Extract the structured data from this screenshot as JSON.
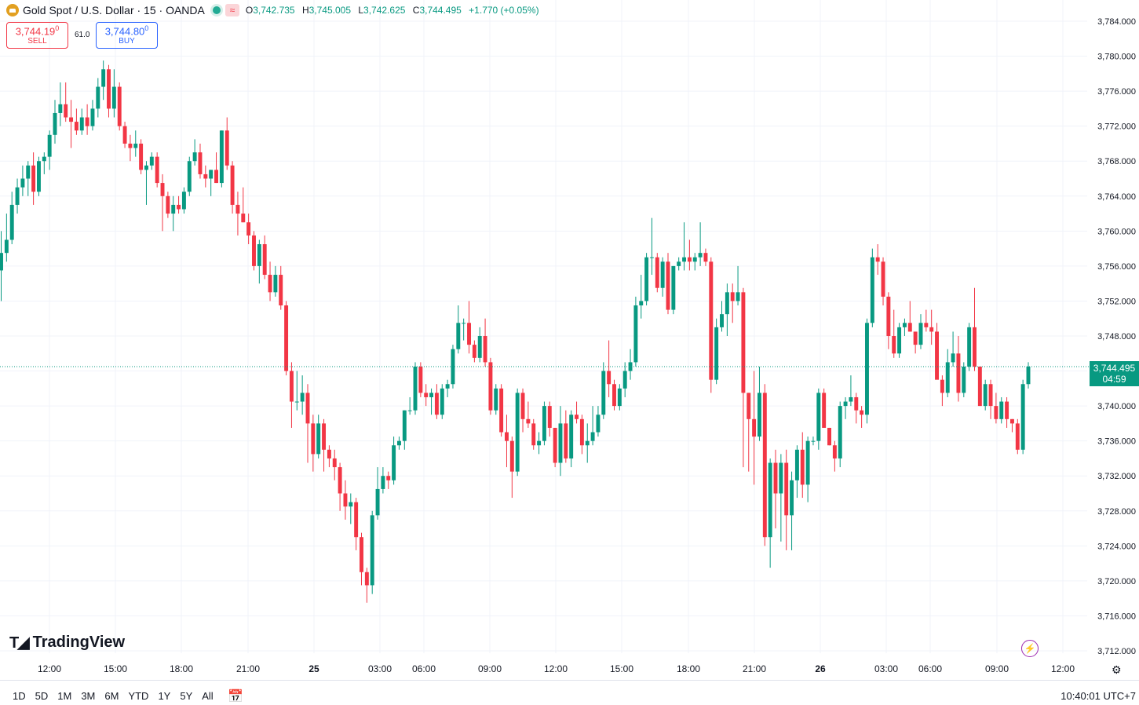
{
  "header": {
    "symbol": "Gold Spot / U.S. Dollar · 15 · OANDA",
    "open_label": "O",
    "open": "3,742.735",
    "high_label": "H",
    "high": "3,745.005",
    "low_label": "L",
    "low": "3,742.625",
    "close_label": "C",
    "close": "3,744.495",
    "change": "+1.770 (+0.05%)"
  },
  "trade": {
    "sell_price": "3,744.19",
    "sell_sup": "0",
    "sell_label": "SELL",
    "spread": "61.0",
    "buy_price": "3,744.80",
    "buy_sup": "0",
    "buy_label": "BUY"
  },
  "last_price": {
    "value": "3,744.495",
    "countdown": "04:59"
  },
  "branding": {
    "name": "TradingView"
  },
  "bottom": {
    "ranges": [
      "1D",
      "5D",
      "1M",
      "3M",
      "6M",
      "YTD",
      "1Y",
      "5Y",
      "All"
    ],
    "clock": "10:40:01 UTC+7"
  },
  "colors": {
    "up": "#089981",
    "down": "#f23645",
    "grid": "#f0f3fa"
  },
  "chart_data": {
    "type": "candlestick",
    "title": "Gold Spot / U.S. Dollar",
    "interval": "15",
    "ylim": [
      3710,
      3786
    ],
    "y_ticks": [
      "3,712.000",
      "3,716.000",
      "3,720.000",
      "3,724.000",
      "3,728.000",
      "3,732.000",
      "3,736.000",
      "3,740.000",
      "3,744.000",
      "3,748.000",
      "3,752.000",
      "3,756.000",
      "3,760.000",
      "3,764.000",
      "3,768.000",
      "3,772.000",
      "3,776.000",
      "3,780.000",
      "3,784.000"
    ],
    "x_ticks": [
      "12:00",
      "15:00",
      "18:00",
      "21:00",
      "25",
      "03:00",
      "06:00",
      "09:00",
      "12:00",
      "15:00",
      "18:00",
      "21:00",
      "26",
      "03:00",
      "06:00",
      "09:00",
      "12:00"
    ],
    "last_price": 3744.495,
    "candles": [
      [
        3755.5,
        3760.0,
        3752.0,
        3757.5
      ],
      [
        3757.5,
        3762.0,
        3756.5,
        3759.0
      ],
      [
        3759.0,
        3764.5,
        3758.5,
        3763.0
      ],
      [
        3763.0,
        3766.0,
        3762.0,
        3765.0
      ],
      [
        3765.0,
        3767.5,
        3764.0,
        3766.0
      ],
      [
        3766.0,
        3768.0,
        3764.0,
        3767.5
      ],
      [
        3767.5,
        3769.0,
        3763.0,
        3764.5
      ],
      [
        3764.5,
        3768.5,
        3764.0,
        3768.0
      ],
      [
        3768.0,
        3769.0,
        3766.5,
        3768.5
      ],
      [
        3768.5,
        3771.5,
        3767.0,
        3771.0
      ],
      [
        3771.0,
        3775.0,
        3770.0,
        3773.5
      ],
      [
        3773.5,
        3777.0,
        3772.0,
        3774.5
      ],
      [
        3774.5,
        3777.0,
        3772.5,
        3773.0
      ],
      [
        3773.0,
        3775.0,
        3769.5,
        3772.5
      ],
      [
        3772.5,
        3774.0,
        3771.0,
        3771.5
      ],
      [
        3771.5,
        3774.0,
        3771.0,
        3773.0
      ],
      [
        3773.0,
        3774.5,
        3771.0,
        3772.0
      ],
      [
        3772.0,
        3775.0,
        3771.5,
        3774.0
      ],
      [
        3774.0,
        3777.5,
        3773.0,
        3776.5
      ],
      [
        3776.5,
        3779.5,
        3775.0,
        3778.5
      ],
      [
        3778.5,
        3779.0,
        3773.0,
        3774.0
      ],
      [
        3774.0,
        3778.5,
        3773.0,
        3776.5
      ],
      [
        3776.5,
        3777.0,
        3771.5,
        3772.0
      ],
      [
        3772.0,
        3772.5,
        3769.5,
        3770.0
      ],
      [
        3770.0,
        3771.0,
        3768.0,
        3769.5
      ],
      [
        3769.5,
        3771.5,
        3768.5,
        3770.0
      ],
      [
        3770.0,
        3770.5,
        3766.5,
        3767.0
      ],
      [
        3767.0,
        3768.0,
        3763.0,
        3767.5
      ],
      [
        3767.5,
        3769.0,
        3767.0,
        3768.5
      ],
      [
        3768.5,
        3769.0,
        3765.0,
        3765.5
      ],
      [
        3765.5,
        3766.5,
        3760.0,
        3764.0
      ],
      [
        3764.0,
        3764.5,
        3761.5,
        3762.0
      ],
      [
        3762.0,
        3764.0,
        3760.0,
        3763.0
      ],
      [
        3763.0,
        3764.0,
        3762.0,
        3762.5
      ],
      [
        3762.5,
        3765.0,
        3762.0,
        3764.5
      ],
      [
        3764.5,
        3768.5,
        3764.0,
        3768.0
      ],
      [
        3768.0,
        3770.5,
        3767.5,
        3769.0
      ],
      [
        3769.0,
        3770.0,
        3766.0,
        3766.5
      ],
      [
        3766.5,
        3767.5,
        3765.0,
        3766.0
      ],
      [
        3766.0,
        3767.0,
        3764.0,
        3767.0
      ],
      [
        3767.0,
        3769.0,
        3765.5,
        3765.5
      ],
      [
        3765.5,
        3771.5,
        3765.0,
        3771.5
      ],
      [
        3771.5,
        3773.0,
        3767.0,
        3767.5
      ],
      [
        3767.5,
        3768.0,
        3762.0,
        3763.0
      ],
      [
        3763.0,
        3764.5,
        3759.5,
        3762.0
      ],
      [
        3762.0,
        3765.0,
        3761.0,
        3761.0
      ],
      [
        3761.0,
        3762.0,
        3758.5,
        3759.5
      ],
      [
        3759.5,
        3760.0,
        3755.5,
        3756.0
      ],
      [
        3756.0,
        3759.0,
        3754.0,
        3758.5
      ],
      [
        3758.5,
        3759.5,
        3754.5,
        3755.0
      ],
      [
        3755.0,
        3756.5,
        3752.0,
        3753.0
      ],
      [
        3753.0,
        3756.0,
        3752.5,
        3755.0
      ],
      [
        3755.0,
        3756.0,
        3751.0,
        3751.5
      ],
      [
        3751.5,
        3752.0,
        3743.5,
        3744.0
      ],
      [
        3744.0,
        3745.0,
        3737.5,
        3740.5
      ],
      [
        3740.5,
        3744.0,
        3739.5,
        3740.5
      ],
      [
        3740.5,
        3743.5,
        3739.0,
        3741.5
      ],
      [
        3741.5,
        3742.5,
        3733.5,
        3738.0
      ],
      [
        3738.0,
        3739.0,
        3732.5,
        3734.5
      ],
      [
        3734.5,
        3739.0,
        3734.0,
        3738.0
      ],
      [
        3738.0,
        3738.5,
        3732.5,
        3735.0
      ],
      [
        3735.0,
        3735.5,
        3733.0,
        3734.0
      ],
      [
        3734.0,
        3735.0,
        3731.5,
        3733.0
      ],
      [
        3733.0,
        3733.5,
        3728.0,
        3730.0
      ],
      [
        3730.0,
        3731.5,
        3727.0,
        3728.5
      ],
      [
        3728.5,
        3730.0,
        3726.5,
        3729.0
      ],
      [
        3729.0,
        3729.5,
        3723.5,
        3725.0
      ],
      [
        3725.0,
        3725.5,
        3719.5,
        3721.0
      ],
      [
        3721.0,
        3721.5,
        3717.5,
        3719.5
      ],
      [
        3719.5,
        3728.0,
        3718.5,
        3727.5
      ],
      [
        3727.5,
        3733.0,
        3727.0,
        3730.5
      ],
      [
        3730.5,
        3733.0,
        3730.0,
        3732.0
      ],
      [
        3732.0,
        3732.5,
        3730.5,
        3731.5
      ],
      [
        3731.5,
        3736.5,
        3731.0,
        3735.5
      ],
      [
        3735.5,
        3736.5,
        3735.0,
        3736.0
      ],
      [
        3736.0,
        3739.5,
        3735.0,
        3739.5
      ],
      [
        3739.5,
        3741.0,
        3739.0,
        3739.5
      ],
      [
        3739.5,
        3745.0,
        3739.0,
        3744.5
      ],
      [
        3744.5,
        3745.0,
        3741.0,
        3741.5
      ],
      [
        3741.5,
        3742.5,
        3740.0,
        3741.0
      ],
      [
        3741.0,
        3742.0,
        3739.0,
        3741.5
      ],
      [
        3741.5,
        3742.5,
        3738.5,
        3739.0
      ],
      [
        3739.0,
        3742.5,
        3738.5,
        3742.0
      ],
      [
        3742.0,
        3743.0,
        3741.0,
        3742.5
      ],
      [
        3742.5,
        3747.0,
        3742.0,
        3746.5
      ],
      [
        3746.5,
        3751.5,
        3746.0,
        3749.5
      ],
      [
        3749.5,
        3750.0,
        3747.5,
        3749.5
      ],
      [
        3749.5,
        3752.0,
        3746.0,
        3747.0
      ],
      [
        3747.0,
        3747.5,
        3745.0,
        3745.5
      ],
      [
        3745.5,
        3749.0,
        3745.0,
        3748.0
      ],
      [
        3748.0,
        3750.0,
        3744.5,
        3745.0
      ],
      [
        3745.0,
        3745.5,
        3739.0,
        3739.5
      ],
      [
        3739.5,
        3742.5,
        3739.0,
        3742.0
      ],
      [
        3742.0,
        3742.5,
        3736.5,
        3737.0
      ],
      [
        3737.0,
        3739.0,
        3733.0,
        3736.0
      ],
      [
        3736.0,
        3736.5,
        3729.5,
        3732.5
      ],
      [
        3732.5,
        3742.0,
        3732.0,
        3741.5
      ],
      [
        3741.5,
        3742.0,
        3737.0,
        3738.5
      ],
      [
        3738.5,
        3740.5,
        3737.5,
        3738.0
      ],
      [
        3738.0,
        3738.5,
        3735.0,
        3735.5
      ],
      [
        3735.5,
        3737.0,
        3734.5,
        3736.0
      ],
      [
        3736.0,
        3740.5,
        3735.5,
        3740.0
      ],
      [
        3740.0,
        3740.5,
        3736.5,
        3737.5
      ],
      [
        3737.5,
        3737.5,
        3733.0,
        3733.5
      ],
      [
        3733.5,
        3740.0,
        3732.0,
        3738.0
      ],
      [
        3738.0,
        3739.5,
        3733.5,
        3734.0
      ],
      [
        3734.0,
        3739.5,
        3733.0,
        3739.0
      ],
      [
        3739.0,
        3740.5,
        3738.0,
        3738.5
      ],
      [
        3738.5,
        3739.0,
        3734.5,
        3735.5
      ],
      [
        3735.5,
        3738.0,
        3733.5,
        3736.0
      ],
      [
        3736.0,
        3740.0,
        3735.5,
        3737.0
      ],
      [
        3737.0,
        3740.0,
        3736.5,
        3739.0
      ],
      [
        3739.0,
        3745.0,
        3738.5,
        3744.0
      ],
      [
        3744.0,
        3747.5,
        3741.0,
        3742.5
      ],
      [
        3742.5,
        3743.0,
        3739.5,
        3740.0
      ],
      [
        3740.0,
        3742.5,
        3739.5,
        3742.0
      ],
      [
        3742.0,
        3745.0,
        3741.0,
        3744.0
      ],
      [
        3744.0,
        3746.5,
        3743.0,
        3745.0
      ],
      [
        3745.0,
        3752.5,
        3744.5,
        3751.5
      ],
      [
        3751.5,
        3755.0,
        3750.0,
        3752.0
      ],
      [
        3752.0,
        3757.5,
        3751.5,
        3757.0
      ],
      [
        3757.0,
        3761.5,
        3755.0,
        3757.0
      ],
      [
        3757.0,
        3757.5,
        3753.0,
        3753.5
      ],
      [
        3753.5,
        3757.0,
        3752.5,
        3756.5
      ],
      [
        3756.5,
        3757.5,
        3750.5,
        3751.0
      ],
      [
        3751.0,
        3756.0,
        3750.5,
        3756.0
      ],
      [
        3756.0,
        3757.0,
        3755.5,
        3756.5
      ],
      [
        3756.5,
        3761.0,
        3755.5,
        3757.0
      ],
      [
        3757.0,
        3759.0,
        3755.5,
        3756.5
      ],
      [
        3756.5,
        3757.5,
        3755.5,
        3757.0
      ],
      [
        3757.0,
        3761.0,
        3756.0,
        3757.5
      ],
      [
        3757.5,
        3758.0,
        3756.0,
        3756.5
      ],
      [
        3756.5,
        3757.0,
        3741.5,
        3743.0
      ],
      [
        3743.0,
        3750.0,
        3742.5,
        3749.0
      ],
      [
        3749.0,
        3752.0,
        3748.5,
        3750.5
      ],
      [
        3750.5,
        3754.0,
        3748.0,
        3753.0
      ],
      [
        3753.0,
        3754.0,
        3749.5,
        3752.0
      ],
      [
        3752.0,
        3756.0,
        3751.5,
        3753.0
      ],
      [
        3753.0,
        3753.5,
        3733.0,
        3741.5
      ],
      [
        3741.5,
        3741.5,
        3732.5,
        3738.5
      ],
      [
        3738.5,
        3744.0,
        3731.0,
        3736.5
      ],
      [
        3736.5,
        3744.5,
        3736.0,
        3741.5
      ],
      [
        3741.5,
        3742.5,
        3724.0,
        3725.0
      ],
      [
        3725.0,
        3734.0,
        3721.5,
        3733.5
      ],
      [
        3733.5,
        3735.0,
        3726.0,
        3730.0
      ],
      [
        3730.0,
        3734.5,
        3724.5,
        3733.5
      ],
      [
        3733.5,
        3735.0,
        3723.5,
        3727.5
      ],
      [
        3727.5,
        3732.5,
        3723.5,
        3731.5
      ],
      [
        3731.5,
        3735.5,
        3729.5,
        3735.0
      ],
      [
        3735.0,
        3737.0,
        3729.5,
        3731.0
      ],
      [
        3731.0,
        3736.5,
        3729.0,
        3736.0
      ],
      [
        3736.0,
        3736.5,
        3735.5,
        3736.0
      ],
      [
        3736.0,
        3742.0,
        3735.0,
        3741.5
      ],
      [
        3741.5,
        3742.0,
        3738.0,
        3737.5
      ],
      [
        3737.5,
        3737.5,
        3735.5,
        3735.5
      ],
      [
        3735.5,
        3736.0,
        3732.5,
        3734.0
      ],
      [
        3734.0,
        3740.5,
        3733.0,
        3740.0
      ],
      [
        3740.0,
        3741.0,
        3738.5,
        3740.5
      ],
      [
        3740.5,
        3743.5,
        3740.0,
        3741.0
      ],
      [
        3741.0,
        3741.5,
        3738.0,
        3739.5
      ],
      [
        3739.5,
        3740.0,
        3737.5,
        3739.0
      ],
      [
        3739.0,
        3750.0,
        3738.0,
        3749.5
      ],
      [
        3749.5,
        3758.0,
        3749.0,
        3757.0
      ],
      [
        3757.0,
        3758.5,
        3755.0,
        3756.5
      ],
      [
        3756.5,
        3757.0,
        3751.5,
        3752.5
      ],
      [
        3752.5,
        3753.0,
        3746.5,
        3748.0
      ],
      [
        3748.0,
        3751.0,
        3745.5,
        3746.0
      ],
      [
        3746.0,
        3749.5,
        3745.5,
        3749.0
      ],
      [
        3749.0,
        3750.0,
        3748.0,
        3749.5
      ],
      [
        3749.5,
        3752.0,
        3748.5,
        3748.5
      ],
      [
        3748.5,
        3748.5,
        3746.0,
        3747.0
      ],
      [
        3747.0,
        3750.5,
        3746.5,
        3749.5
      ],
      [
        3749.5,
        3751.0,
        3748.5,
        3749.0
      ],
      [
        3749.0,
        3751.0,
        3747.0,
        3748.5
      ],
      [
        3748.5,
        3749.5,
        3743.5,
        3743.0
      ],
      [
        3743.0,
        3743.5,
        3740.0,
        3741.5
      ],
      [
        3741.5,
        3746.5,
        3741.0,
        3745.0
      ],
      [
        3745.0,
        3748.5,
        3744.5,
        3746.0
      ],
      [
        3746.0,
        3748.0,
        3740.5,
        3741.5
      ],
      [
        3741.5,
        3745.0,
        3741.0,
        3744.5
      ],
      [
        3744.5,
        3749.5,
        3744.0,
        3749.0
      ],
      [
        3749.0,
        3753.5,
        3744.0,
        3744.5
      ],
      [
        3744.5,
        3744.5,
        3740.0,
        3740.0
      ],
      [
        3740.0,
        3743.0,
        3739.5,
        3742.5
      ],
      [
        3742.5,
        3743.0,
        3738.5,
        3740.0
      ],
      [
        3740.0,
        3741.5,
        3738.0,
        3738.5
      ],
      [
        3738.5,
        3741.0,
        3738.0,
        3740.5
      ],
      [
        3740.5,
        3741.0,
        3737.5,
        3738.5
      ],
      [
        3738.5,
        3738.5,
        3737.0,
        3738.0
      ],
      [
        3738.0,
        3738.5,
        3734.5,
        3735.0
      ],
      [
        3735.0,
        3743.0,
        3734.5,
        3742.5
      ],
      [
        3742.5,
        3745.0,
        3742.0,
        3744.5
      ]
    ]
  }
}
